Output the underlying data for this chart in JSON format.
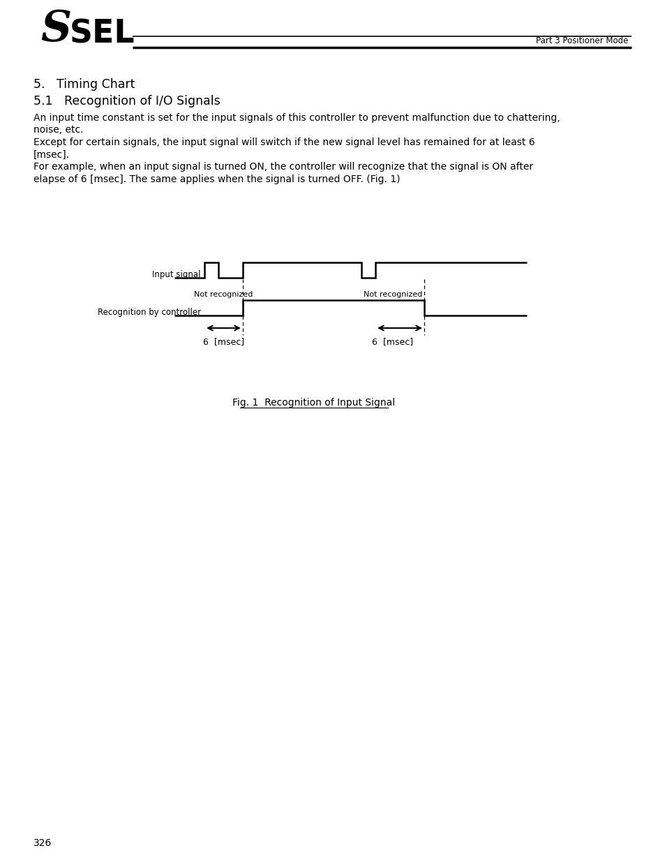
{
  "header_right": "Part 3 Positioner Mode",
  "title_main": "5.   Timing Chart",
  "title_sub": "5.1   Recognition of I/O Signals",
  "body_text": [
    "An input time constant is set for the input signals of this controller to prevent malfunction due to chattering,",
    "noise, etc.",
    "Except for certain signals, the input signal will switch if the new signal level has remained for at least 6",
    "[msec].",
    "For example, when an input signal is turned ON, the controller will recognize that the signal is ON after",
    "elapse of 6 [msec]. The same applies when the signal is turned OFF. (Fig. 1)"
  ],
  "label_input": "Input signal",
  "label_recognition": "Recognition by controller",
  "label_not_rec_1": "Not recognized",
  "label_not_rec_2": "Not recognized",
  "label_6msec": "6  [msec]",
  "fig_caption": "Fig. 1  Recognition of Input Signal",
  "page_number": "326",
  "bg_color": "#ffffff",
  "text_color": "#000000",
  "lc": "#000000",
  "logo_S": "S",
  "logo_SEL": "SEL"
}
